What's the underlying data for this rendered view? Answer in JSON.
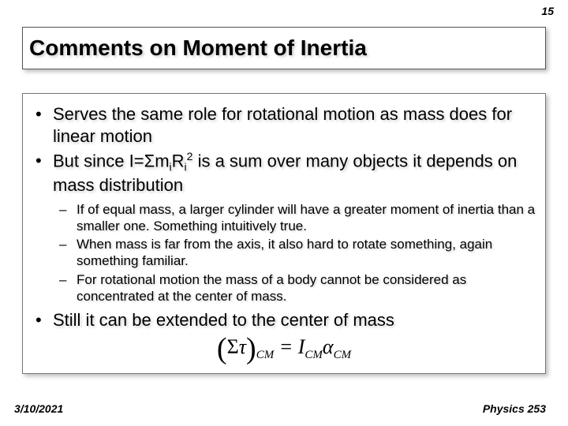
{
  "page_number": "15",
  "title": "Comments on Moment of Inertia",
  "bullets": {
    "b1": "Serves the same role for rotational motion as mass does for linear motion",
    "b2_pre": "But since I=",
    "b2_sum": "Σ",
    "b2_m": "m",
    "b2_i1": "i",
    "b2_r": "R",
    "b2_i2": "i",
    "b2_sq": "2",
    "b2_post": " is a sum over many objects it depends on mass distribution",
    "b3": "Still it can be extended to the center of mass"
  },
  "subs": {
    "s1": "If of equal mass, a larger cylinder will have a greater moment of inertia than a smaller one. Something intuitively true.",
    "s2": "When mass is far from the axis, it also hard to rotate something, again something familiar.",
    "s3": "For rotational motion the mass of a body cannot be considered as concentrated at the center of mass."
  },
  "equation": {
    "lparen": "(",
    "sigma": "Σ",
    "tau": "τ",
    "rparen": ")",
    "cm1": "CM",
    "eq": " = ",
    "I": "I",
    "cm2": "CM",
    "alpha": "α",
    "cm3": "CM"
  },
  "footer": {
    "date": "3/10/2021",
    "course": "Physics 253"
  },
  "style": {
    "text_color": "#000000",
    "bg_color": "#ffffff",
    "title_fontsize": 28,
    "bullet_fontsize": 22,
    "sub_fontsize": 17,
    "footer_fontsize": 14
  }
}
